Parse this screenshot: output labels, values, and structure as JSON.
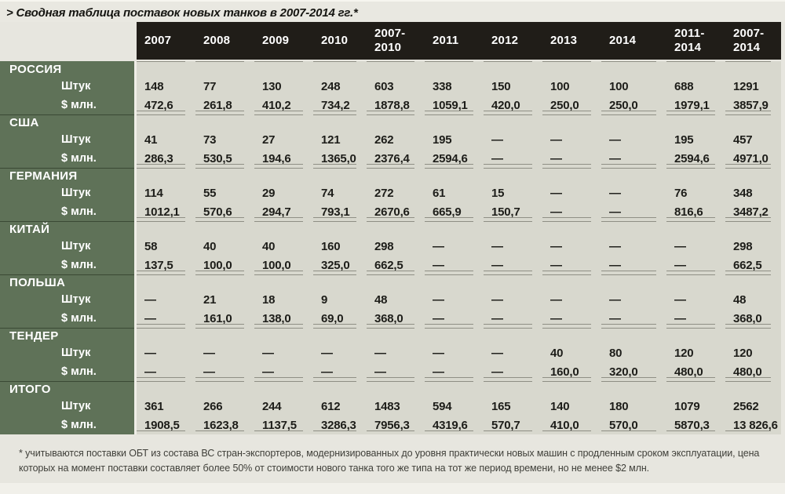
{
  "page": {
    "title": "> Сводная таблица поставок новых танков в 2007-2014 гг.*",
    "footnote": "* учитываются поставки ОБТ из состава ВС стран-экспортеров, модернизированных до уровня практически новых машин с продленным сроком эксплуатации, цена которых на момент поставки составляет более 50% от стоимости нового танка того же типа на тот же период времени, но не менее $2 млн."
  },
  "colors": {
    "header_bg": "#201d18",
    "label_column_bg": "#5f7258",
    "body_bg": "#d8d8ce",
    "page_bg": "#e7e6df",
    "rule_line": "#8f8f85"
  },
  "chart_data": {
    "type": "table",
    "title": "Сводная таблица поставок новых танков в 2007-2014 гг.",
    "columns": [
      "2007",
      "2008",
      "2009",
      "2010",
      "2007-\n2010",
      "2011",
      "2012",
      "2013",
      "2014",
      "2011-\n2014",
      "2007-\n2014"
    ],
    "row_labels": {
      "units": "Штук",
      "usd": "$ млн."
    },
    "groups": [
      {
        "name": "РОССИЯ",
        "units": [
          "148",
          "77",
          "130",
          "248",
          "603",
          "338",
          "150",
          "100",
          "100",
          "688",
          "1291"
        ],
        "usd": [
          "472,6",
          "261,8",
          "410,2",
          "734,2",
          "1878,8",
          "1059,1",
          "420,0",
          "250,0",
          "250,0",
          "1979,1",
          "3857,9"
        ]
      },
      {
        "name": "США",
        "units": [
          "41",
          "73",
          "27",
          "121",
          "262",
          "195",
          "—",
          "—",
          "—",
          "195",
          "457"
        ],
        "usd": [
          "286,3",
          "530,5",
          "194,6",
          "1365,0",
          "2376,4",
          "2594,6",
          "—",
          "—",
          "—",
          "2594,6",
          "4971,0"
        ]
      },
      {
        "name": "ГЕРМАНИЯ",
        "units": [
          "114",
          "55",
          "29",
          "74",
          "272",
          "61",
          "15",
          "—",
          "—",
          "76",
          "348"
        ],
        "usd": [
          "1012,1",
          "570,6",
          "294,7",
          "793,1",
          "2670,6",
          "665,9",
          "150,7",
          "—",
          "—",
          "816,6",
          "3487,2"
        ]
      },
      {
        "name": "КИТАЙ",
        "units": [
          "58",
          "40",
          "40",
          "160",
          "298",
          "—",
          "—",
          "—",
          "—",
          "—",
          "298"
        ],
        "usd": [
          "137,5",
          "100,0",
          "100,0",
          "325,0",
          "662,5",
          "—",
          "—",
          "—",
          "—",
          "—",
          "662,5"
        ]
      },
      {
        "name": "ПОЛЬША",
        "units": [
          "—",
          "21",
          "18",
          "9",
          "48",
          "—",
          "—",
          "—",
          "—",
          "—",
          "48"
        ],
        "usd": [
          "—",
          "161,0",
          "138,0",
          "69,0",
          "368,0",
          "—",
          "—",
          "—",
          "—",
          "—",
          "368,0"
        ]
      },
      {
        "name": "ТЕНДЕР",
        "units": [
          "—",
          "—",
          "—",
          "—",
          "—",
          "—",
          "—",
          "40",
          "80",
          "120",
          "120"
        ],
        "usd": [
          "—",
          "—",
          "—",
          "—",
          "—",
          "—",
          "—",
          "160,0",
          "320,0",
          "480,0",
          "480,0"
        ]
      },
      {
        "name": "ИТОГО",
        "units": [
          "361",
          "266",
          "244",
          "612",
          "1483",
          "594",
          "165",
          "140",
          "180",
          "1079",
          "2562"
        ],
        "usd": [
          "1908,5",
          "1623,8",
          "1137,5",
          "3286,3",
          "7956,3",
          "4319,6",
          "570,7",
          "410,0",
          "570,0",
          "5870,3",
          "13 826,6"
        ]
      }
    ]
  }
}
